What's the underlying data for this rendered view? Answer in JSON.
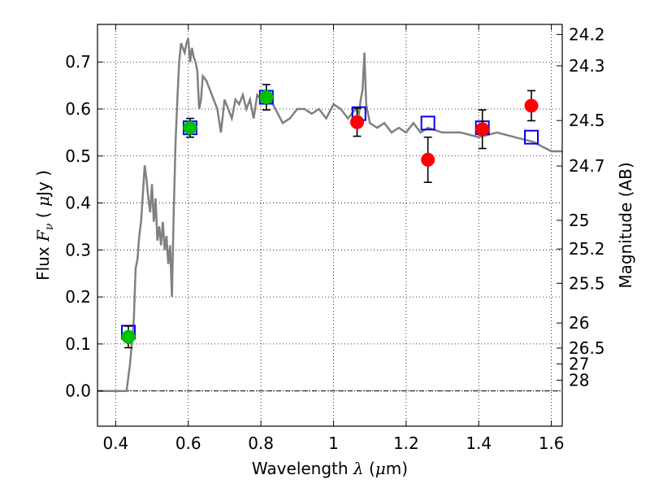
{
  "chart_data": {
    "type": "scatter",
    "xlabel": "Wavelength  λ (μm)",
    "ylabel": "Flux  F_ν  ( μJy )",
    "ylabel_parts": {
      "prefix": "Flux  ",
      "symbol": "F",
      "subscript": "ν",
      "unit_open": "  ( ",
      "unit_mu": "μ",
      "unit_rest": "Jy )"
    },
    "xlabel_parts": {
      "prefix": "Wavelength  ",
      "symbol": "λ",
      "unit_open": " (",
      "unit_mu": "μ",
      "unit_rest": "m)"
    },
    "y2label": "Magnitude (AB)",
    "xlim": [
      0.35,
      1.63
    ],
    "ylim": [
      -0.075,
      0.78
    ],
    "grid": true,
    "x_ticks": [
      {
        "v": 0.4,
        "label": "0.4"
      },
      {
        "v": 0.6,
        "label": "0.6"
      },
      {
        "v": 0.8,
        "label": "0.8"
      },
      {
        "v": 1.0,
        "label": "1"
      },
      {
        "v": 1.2,
        "label": "1.2"
      },
      {
        "v": 1.4,
        "label": "1.4"
      },
      {
        "v": 1.6,
        "label": "1.6"
      }
    ],
    "y_ticks": [
      {
        "v": 0.0,
        "label": "0.0"
      },
      {
        "v": 0.1,
        "label": "0.1"
      },
      {
        "v": 0.2,
        "label": "0.2"
      },
      {
        "v": 0.3,
        "label": "0.3"
      },
      {
        "v": 0.4,
        "label": "0.4"
      },
      {
        "v": 0.5,
        "label": "0.5"
      },
      {
        "v": 0.6,
        "label": "0.6"
      },
      {
        "v": 0.7,
        "label": "0.7"
      }
    ],
    "mag_ticks": [
      {
        "mag": 24.2,
        "label": "24.2"
      },
      {
        "mag": 24.3,
        "label": "24.3"
      },
      {
        "mag": 24.5,
        "label": "24.5"
      },
      {
        "mag": 24.7,
        "label": "24.7"
      },
      {
        "mag": 25.0,
        "label": "25"
      },
      {
        "mag": 25.2,
        "label": "25.2"
      },
      {
        "mag": 25.5,
        "label": "25.5"
      },
      {
        "mag": 26.0,
        "label": "26"
      },
      {
        "mag": 26.5,
        "label": "26.5"
      },
      {
        "mag": 27.0,
        "label": "27"
      },
      {
        "mag": 28.0,
        "label": "28"
      }
    ],
    "model_spectrum": {
      "color": "#808080",
      "x": [
        0.35,
        0.43,
        0.44,
        0.45,
        0.455,
        0.46,
        0.465,
        0.47,
        0.475,
        0.48,
        0.485,
        0.49,
        0.495,
        0.5,
        0.505,
        0.51,
        0.515,
        0.52,
        0.525,
        0.53,
        0.535,
        0.54,
        0.545,
        0.55,
        0.555,
        0.56,
        0.565,
        0.57,
        0.575,
        0.58,
        0.585,
        0.59,
        0.595,
        0.6,
        0.605,
        0.61,
        0.615,
        0.62,
        0.625,
        0.63,
        0.635,
        0.64,
        0.65,
        0.66,
        0.67,
        0.68,
        0.69,
        0.7,
        0.71,
        0.72,
        0.73,
        0.74,
        0.75,
        0.76,
        0.77,
        0.78,
        0.79,
        0.8,
        0.82,
        0.84,
        0.86,
        0.88,
        0.9,
        0.92,
        0.94,
        0.96,
        0.98,
        1.0,
        1.02,
        1.04,
        1.06,
        1.07,
        1.075,
        1.08,
        1.085,
        1.09,
        1.1,
        1.12,
        1.14,
        1.16,
        1.18,
        1.2,
        1.22,
        1.24,
        1.26,
        1.3,
        1.35,
        1.4,
        1.45,
        1.5,
        1.55,
        1.6,
        1.63
      ],
      "y": [
        0.0,
        0.0,
        0.06,
        0.15,
        0.26,
        0.28,
        0.33,
        0.36,
        0.42,
        0.48,
        0.45,
        0.41,
        0.38,
        0.44,
        0.36,
        0.41,
        0.32,
        0.35,
        0.31,
        0.36,
        0.3,
        0.33,
        0.27,
        0.31,
        0.2,
        0.38,
        0.53,
        0.62,
        0.7,
        0.74,
        0.73,
        0.72,
        0.74,
        0.75,
        0.7,
        0.73,
        0.71,
        0.7,
        0.68,
        0.6,
        0.62,
        0.67,
        0.66,
        0.64,
        0.62,
        0.6,
        0.55,
        0.62,
        0.6,
        0.58,
        0.62,
        0.61,
        0.63,
        0.6,
        0.62,
        0.58,
        0.63,
        0.62,
        0.63,
        0.6,
        0.57,
        0.58,
        0.6,
        0.6,
        0.59,
        0.6,
        0.58,
        0.61,
        0.6,
        0.58,
        0.6,
        0.59,
        0.62,
        0.64,
        0.72,
        0.61,
        0.57,
        0.56,
        0.57,
        0.55,
        0.56,
        0.55,
        0.57,
        0.55,
        0.56,
        0.55,
        0.55,
        0.54,
        0.55,
        0.54,
        0.53,
        0.51,
        0.51
      ]
    },
    "series": [
      {
        "name": "model_photometry",
        "marker": "open-square",
        "color": "#0000ff",
        "x": [
          0.435,
          0.605,
          0.815,
          1.07,
          1.26,
          1.41,
          1.545
        ],
        "y": [
          0.125,
          0.56,
          0.625,
          0.59,
          0.57,
          0.56,
          0.54
        ]
      },
      {
        "name": "detections_green",
        "marker": "filled-circle",
        "color": "#00c000",
        "x": [
          0.435,
          0.605,
          0.815
        ],
        "y": [
          0.115,
          0.56,
          0.625
        ],
        "err": [
          0.023,
          0.02,
          0.027
        ]
      },
      {
        "name": "detections_red",
        "marker": "filled-circle",
        "color": "#ff0000",
        "x": [
          1.065,
          1.26,
          1.41,
          1.545
        ],
        "y": [
          0.572,
          0.492,
          0.557,
          0.607
        ],
        "err": [
          0.03,
          0.048,
          0.041,
          0.032
        ]
      }
    ]
  }
}
